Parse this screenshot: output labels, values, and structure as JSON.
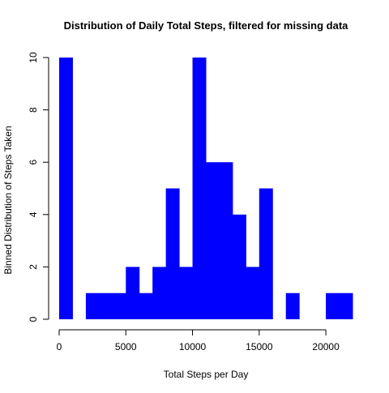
{
  "chart_data": {
    "type": "bar",
    "title": "Distribution of Daily Total Steps, filtered for missing data",
    "xlabel": "Total Steps per Day",
    "ylabel": "Binned Distribution of Steps Taken",
    "bin_width": 1000,
    "bins_start": [
      0,
      1000,
      2000,
      3000,
      4000,
      5000,
      6000,
      7000,
      8000,
      9000,
      10000,
      11000,
      12000,
      13000,
      14000,
      15000,
      16000,
      17000,
      18000,
      19000,
      20000,
      21000
    ],
    "values": [
      10,
      0,
      1,
      1,
      1,
      2,
      1,
      2,
      5,
      2,
      10,
      6,
      6,
      4,
      2,
      5,
      0,
      1,
      0,
      0,
      1,
      1
    ],
    "xlim": [
      0,
      22000
    ],
    "ylim": [
      0,
      10
    ],
    "x_ticks": [
      0,
      5000,
      10000,
      15000,
      20000
    ],
    "x_tick_labels": [
      "0",
      "5000",
      "10000",
      "15000",
      "20000"
    ],
    "y_ticks": [
      0,
      2,
      4,
      6,
      8,
      10
    ],
    "y_tick_labels": [
      "0",
      "2",
      "4",
      "6",
      "8",
      "10"
    ],
    "bar_color": "#0000ff",
    "grid": false,
    "legend": "none"
  }
}
